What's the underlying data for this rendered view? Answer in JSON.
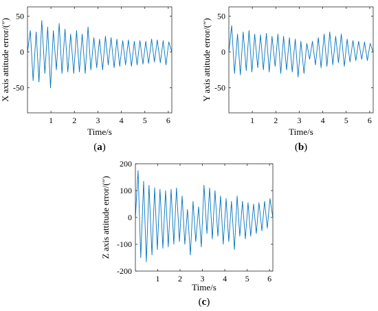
{
  "chart_data": [
    {
      "panel_label": "a",
      "type": "line",
      "xlabel": "Time/s",
      "ylabel": "X axis attitude error/(″)",
      "xlim": [
        0,
        6.15
      ],
      "ylim": [
        -85,
        63
      ],
      "xticks": [
        1,
        2,
        3,
        4,
        5,
        6
      ],
      "yticks": [
        50,
        0,
        -50
      ],
      "color": "#0072BD",
      "grid": false,
      "series": [
        {
          "x": [
            0.0,
            0.12,
            0.24,
            0.37,
            0.49,
            0.61,
            0.74,
            0.86,
            0.98,
            1.1,
            1.23,
            1.35,
            1.47,
            1.6,
            1.72,
            1.84,
            1.97,
            2.09,
            2.21,
            2.33,
            2.46,
            2.58,
            2.7,
            2.83,
            2.95,
            3.07,
            3.2,
            3.32,
            3.44,
            3.56,
            3.69,
            3.81,
            3.93,
            4.06,
            4.18,
            4.3,
            4.43,
            4.55,
            4.67,
            4.79,
            4.92,
            5.04,
            5.16,
            5.29,
            5.41,
            5.53,
            5.66,
            5.78,
            5.9,
            6.02,
            6.15
          ],
          "y": [
            0,
            30,
            -40,
            28,
            -42,
            44,
            -30,
            35,
            -50,
            30,
            -25,
            40,
            -30,
            32,
            -28,
            25,
            -30,
            30,
            -28,
            25,
            -30,
            35,
            -25,
            20,
            -22,
            18,
            -25,
            22,
            -18,
            20,
            -22,
            18,
            -20,
            16,
            -18,
            17,
            -20,
            15,
            -18,
            16,
            -17,
            15,
            -16,
            18,
            -14,
            17,
            -15,
            16,
            -18,
            14,
            0
          ]
        }
      ]
    },
    {
      "panel_label": "b",
      "type": "line",
      "xlabel": "Time/s",
      "ylabel": "Y axis attitude error/(″)",
      "xlim": [
        0,
        6.15
      ],
      "ylim": [
        -85,
        63
      ],
      "xticks": [
        1,
        2,
        3,
        4,
        5,
        6
      ],
      "yticks": [
        50,
        0,
        -50
      ],
      "color": "#0072BD",
      "grid": false,
      "series": [
        {
          "x": [
            0.0,
            0.12,
            0.24,
            0.37,
            0.49,
            0.61,
            0.74,
            0.86,
            0.98,
            1.1,
            1.23,
            1.35,
            1.47,
            1.6,
            1.72,
            1.84,
            1.97,
            2.09,
            2.21,
            2.33,
            2.46,
            2.58,
            2.7,
            2.83,
            2.95,
            3.07,
            3.2,
            3.32,
            3.44,
            3.56,
            3.69,
            3.81,
            3.93,
            4.06,
            4.18,
            4.3,
            4.43,
            4.55,
            4.67,
            4.79,
            4.92,
            5.04,
            5.16,
            5.29,
            5.41,
            5.53,
            5.66,
            5.78,
            5.9,
            6.02,
            6.15
          ],
          "y": [
            0,
            37,
            -30,
            25,
            -32,
            28,
            -26,
            30,
            -28,
            25,
            -22,
            24,
            -25,
            26,
            -28,
            22,
            -20,
            25,
            -30,
            22,
            -25,
            20,
            -28,
            18,
            -35,
            15,
            -30,
            12,
            -10,
            15,
            -18,
            20,
            -22,
            25,
            -20,
            28,
            -18,
            22,
            -15,
            25,
            -20,
            18,
            -14,
            16,
            -12,
            15,
            -10,
            14,
            -12,
            12,
            0
          ]
        }
      ]
    },
    {
      "panel_label": "c",
      "type": "line",
      "xlabel": "Time/s",
      "ylabel": "Z axis attitude error/(″)",
      "xlim": [
        0,
        6.15
      ],
      "ylim": [
        -200,
        200
      ],
      "xticks": [
        1,
        2,
        3,
        4,
        5,
        6
      ],
      "yticks": [
        200,
        100,
        0,
        -100,
        -200
      ],
      "color": "#0072BD",
      "grid": false,
      "series": [
        {
          "x": [
            0.0,
            0.12,
            0.24,
            0.37,
            0.49,
            0.61,
            0.74,
            0.86,
            0.98,
            1.1,
            1.23,
            1.35,
            1.47,
            1.6,
            1.72,
            1.84,
            1.97,
            2.09,
            2.21,
            2.33,
            2.46,
            2.58,
            2.7,
            2.83,
            2.95,
            3.07,
            3.2,
            3.32,
            3.44,
            3.56,
            3.69,
            3.81,
            3.93,
            4.06,
            4.18,
            4.3,
            4.43,
            4.55,
            4.67,
            4.79,
            4.92,
            5.04,
            5.16,
            5.29,
            5.41,
            5.53,
            5.66,
            5.78,
            5.9,
            6.02,
            6.15
          ],
          "y": [
            0,
            175,
            -150,
            135,
            -165,
            120,
            -140,
            110,
            -120,
            105,
            -115,
            100,
            -110,
            105,
            -100,
            110,
            -90,
            80,
            -100,
            30,
            -140,
            60,
            -90,
            40,
            -110,
            120,
            -60,
            110,
            -80,
            100,
            -70,
            80,
            -100,
            70,
            -90,
            60,
            -120,
            80,
            -70,
            60,
            -80,
            55,
            -70,
            50,
            -60,
            55,
            -50,
            60,
            -40,
            70,
            0
          ]
        }
      ]
    }
  ]
}
